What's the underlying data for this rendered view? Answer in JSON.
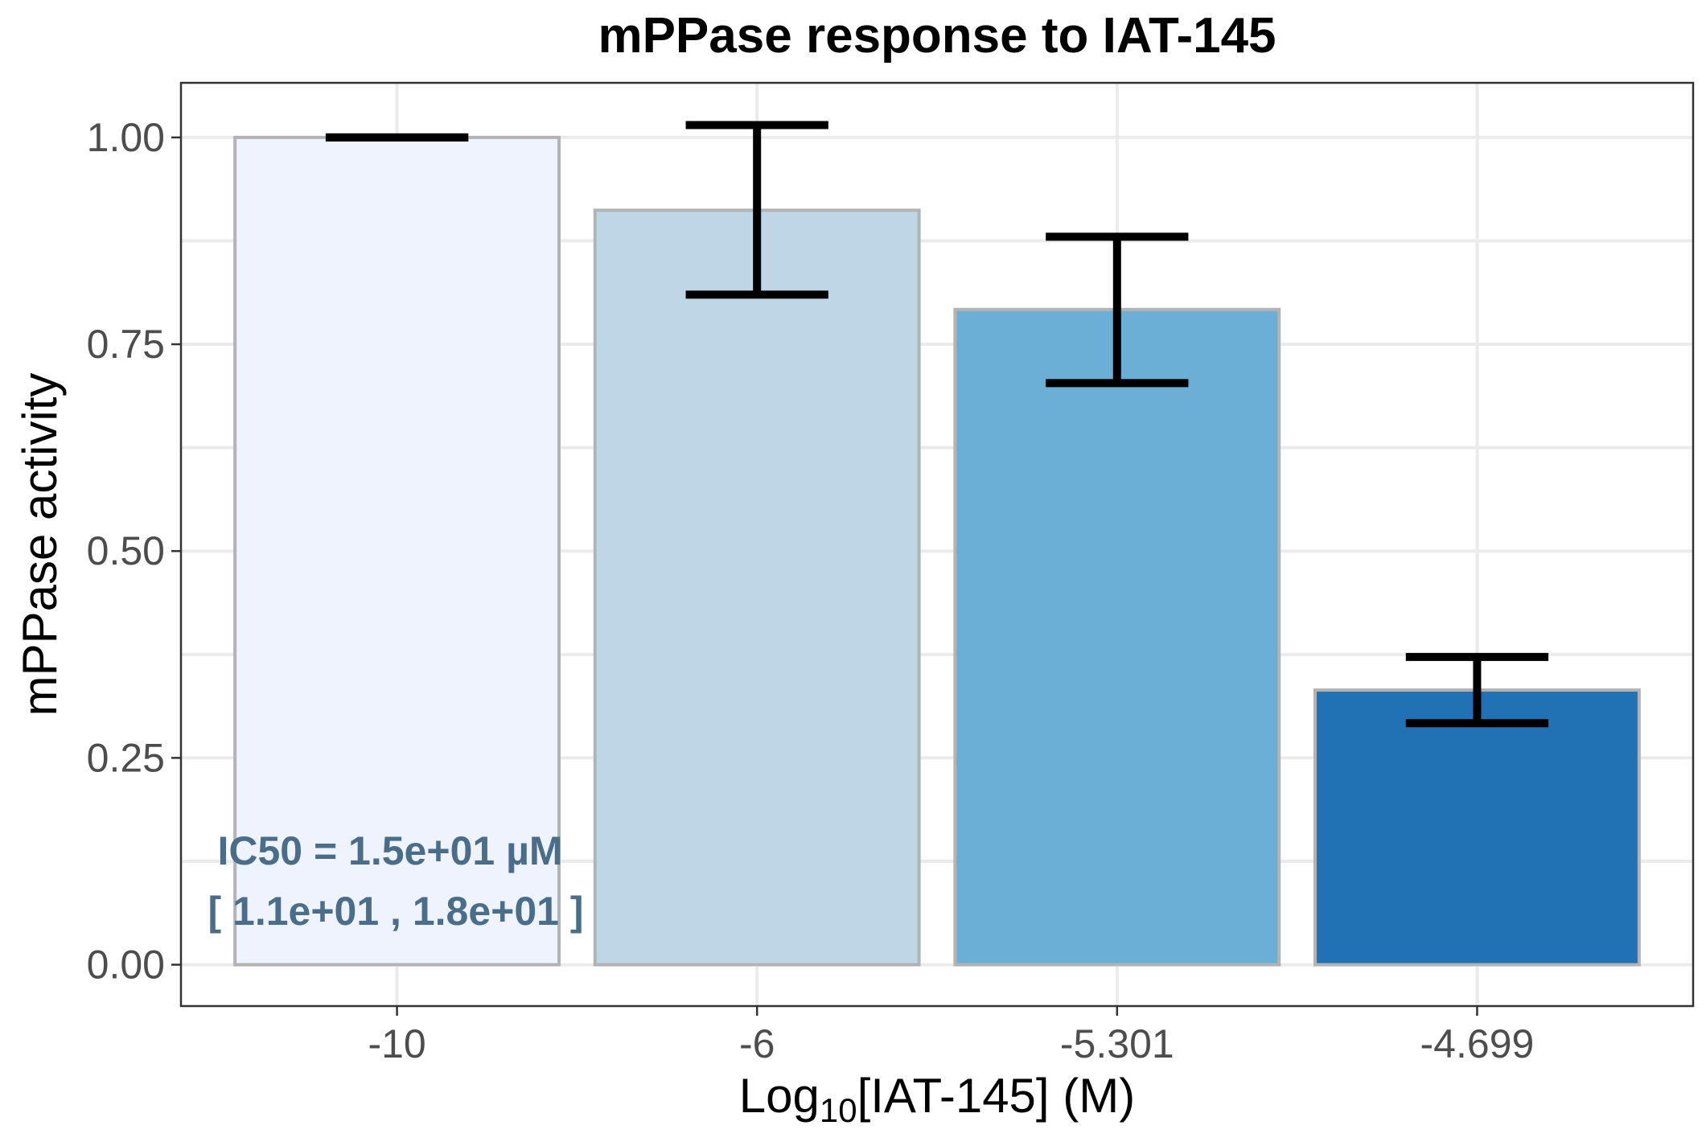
{
  "chart_data": {
    "type": "bar",
    "title": "mPPase response to IAT-145",
    "xlabel_main": "Log",
    "xlabel_sub": "10",
    "xlabel_rest": "[IAT-145] (M)",
    "ylabel": "mPPase activity",
    "categories": [
      "-10",
      "-6",
      "-5.301",
      "-4.699"
    ],
    "values": [
      1.0,
      0.912,
      0.792,
      0.332
    ],
    "error_low": [
      1.0,
      0.81,
      0.703,
      0.292
    ],
    "error_high": [
      1.0,
      1.015,
      0.88,
      0.372
    ],
    "bar_colors": [
      "#eef3fe",
      "#bfd6e6",
      "#6baed6",
      "#2171b5"
    ],
    "ylim": [
      -0.05,
      1.066
    ],
    "yticks": [
      0,
      0.25,
      0.5,
      0.75,
      1.0
    ],
    "ytick_labels": [
      "0.00",
      "0.25",
      "0.50",
      "0.75",
      "1.00"
    ],
    "grid": true,
    "annotation_line1": "IC50 = 1.5e+01 µM",
    "annotation_line2": "[ 1.1e+01 , 1.8e+01 ]"
  }
}
